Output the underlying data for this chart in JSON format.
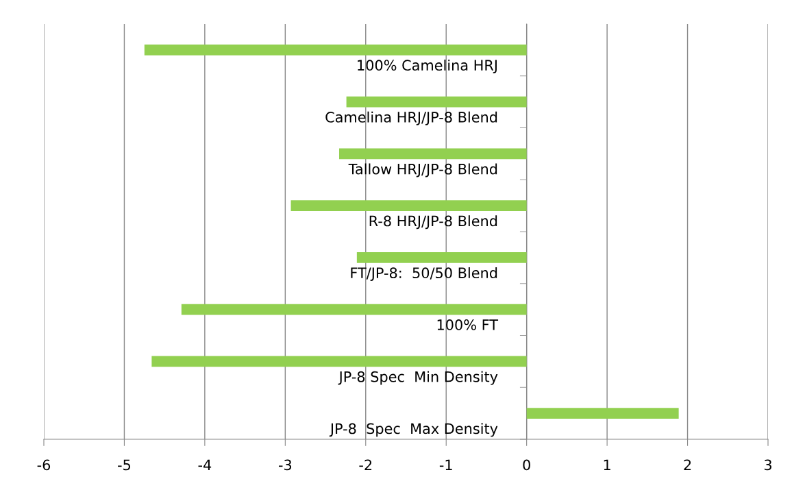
{
  "chart_data": {
    "type": "bar",
    "orientation": "horizontal",
    "categories": [
      "100% Camelina HRJ",
      "Camelina HRJ/JP-8 Blend",
      "Tallow HRJ/JP-8 Blend",
      "R-8 HRJ/JP-8 Blend",
      "FT/JP-8:  50/50 Blend",
      "100% FT",
      "JP-8 Spec  Min Density",
      "JP-8  Spec  Max Density"
    ],
    "values": [
      -4.75,
      -2.24,
      -2.33,
      -2.93,
      -2.11,
      -4.29,
      -4.66,
      1.89
    ],
    "color": "#92d050",
    "xlim": [
      -6,
      3
    ],
    "xticks": [
      -6,
      -5,
      -4,
      -3,
      -2,
      -1,
      0,
      1,
      2,
      3
    ],
    "grid": "x"
  }
}
